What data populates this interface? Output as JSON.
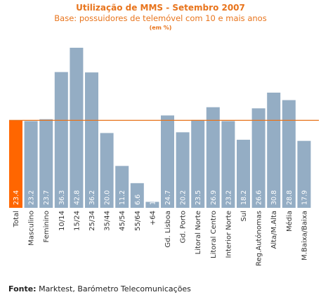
{
  "chart_data": {
    "type": "bar",
    "title": "Utilização de MMS - Setembro 2007",
    "subtitle": "Base: possuidores de telemóvel com 10 e mais anos",
    "unit_note": "(em %)",
    "categories": [
      "Total",
      "Masculino",
      "Feminino",
      "10/14",
      "15/24",
      "25/34",
      "35/44",
      "45/54",
      "55/64",
      "+64",
      "Gd. Lisboa",
      "Gd. Porto",
      "Litoral Norte",
      "Litoral Centro",
      "Interior Norte",
      "Sul",
      "Reg.Autónomas",
      "Alta/M.Alta",
      "Média",
      "M.Baixa/Baixa"
    ],
    "values": [
      23.4,
      23.2,
      23.7,
      36.3,
      42.8,
      36.2,
      20.0,
      11.2,
      6.6,
      1.6,
      24.7,
      20.2,
      23.5,
      26.9,
      23.2,
      18.2,
      26.6,
      30.8,
      28.8,
      17.9
    ],
    "labels": [
      "23.4",
      "23.2",
      "23.7",
      "36.3",
      "42.8",
      "36.2",
      "20.0",
      "11.2",
      "6.6",
      "1.6",
      "24.7",
      "20.2",
      "23.5",
      "26.9",
      "23.2",
      "18.2",
      "26.6",
      "30.8",
      "28.8",
      "17.9"
    ],
    "highlight_index": 0,
    "reference_value": 23.4,
    "colors": {
      "bar": "#94adc4",
      "highlight": "#ff6600",
      "reference_line": "#e8741c",
      "value_label": "#ffffff",
      "axis_label": "#333333",
      "title": "#e8741c"
    }
  },
  "source": {
    "prefix": "Fonte:",
    "text": " Marktest, Barómetro Telecomunicações"
  }
}
